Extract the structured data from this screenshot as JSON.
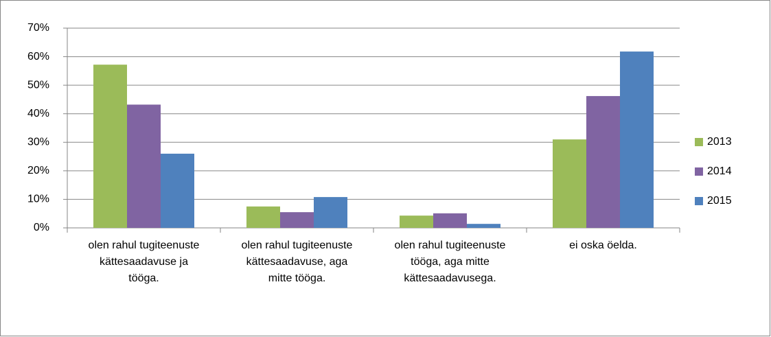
{
  "chart_data": {
    "type": "bar",
    "categories": [
      "olen rahul tugiteenuste kättesaadavuse ja tööga.",
      "olen rahul tugiteenuste kättesaadavuse, aga mitte tööga.",
      "olen rahul tugiteenuste tööga, aga mitte kättesaadavusega.",
      "ei oska öelda."
    ],
    "series": [
      {
        "name": "2013",
        "color": "#9bbb59",
        "values": [
          57.2,
          7.5,
          4.3,
          31.0
        ]
      },
      {
        "name": "2014",
        "color": "#8064a2",
        "values": [
          43.2,
          5.5,
          5.1,
          46.2
        ]
      },
      {
        "name": "2015",
        "color": "#4f81bd",
        "values": [
          26.0,
          10.8,
          1.4,
          61.8
        ]
      }
    ],
    "ylim": [
      0,
      70
    ],
    "yticks": [
      {
        "value": 0,
        "label": "0%"
      },
      {
        "value": 10,
        "label": "10%"
      },
      {
        "value": 20,
        "label": "20%"
      },
      {
        "value": 30,
        "label": "30%"
      },
      {
        "value": 40,
        "label": "40%"
      },
      {
        "value": 50,
        "label": "50%"
      },
      {
        "value": 60,
        "label": "60%"
      },
      {
        "value": 70,
        "label": "70%"
      }
    ],
    "grid": true,
    "legend": "right"
  }
}
